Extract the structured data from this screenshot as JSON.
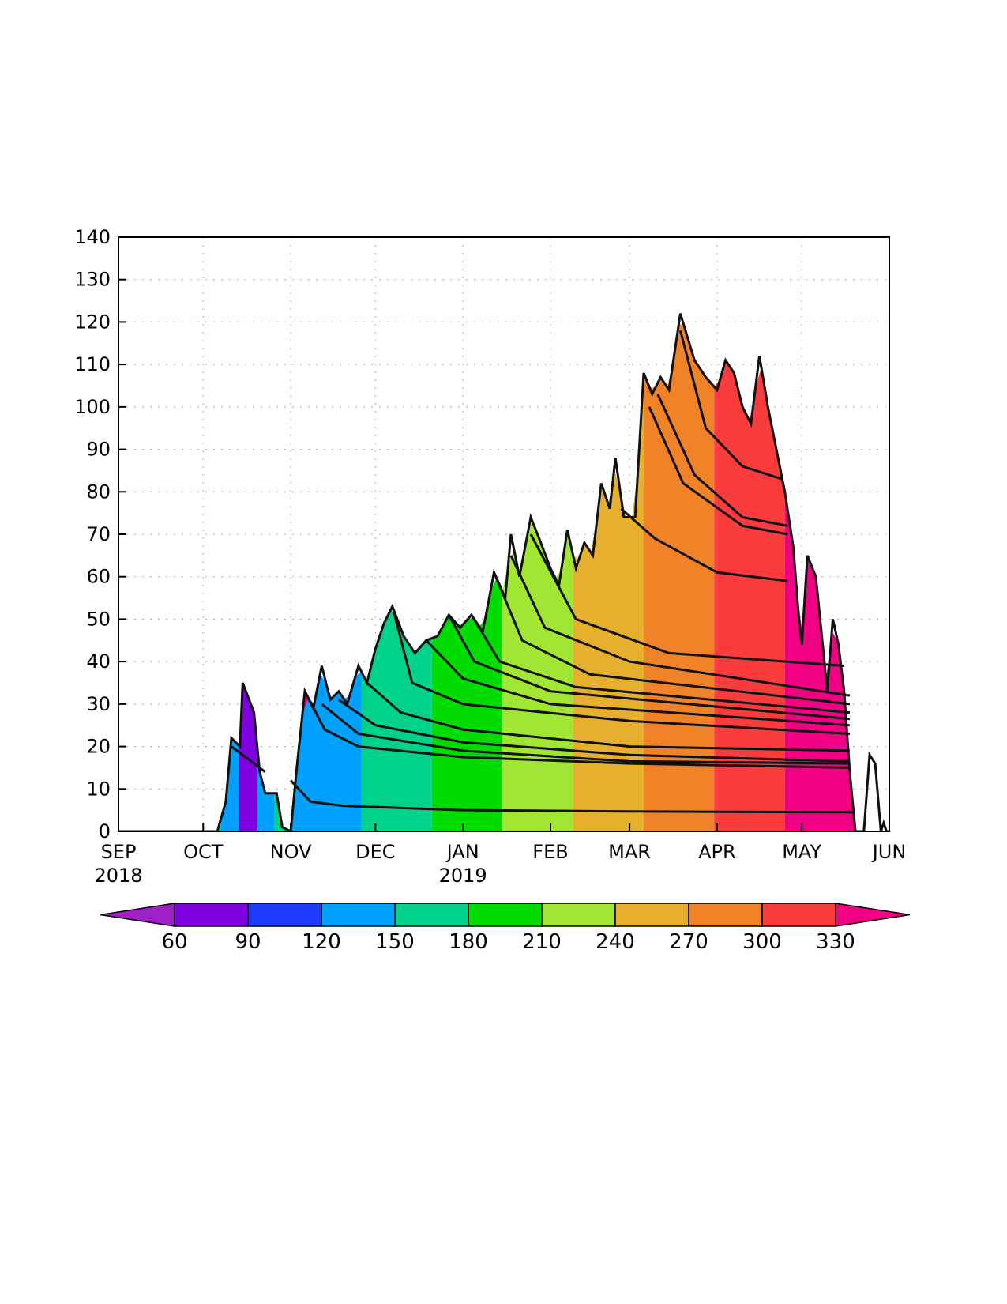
{
  "chart_data": {
    "type": "area",
    "title": "",
    "xlabel": "",
    "ylabel": "",
    "x_range": [
      "2018-09-01",
      "2019-06-01"
    ],
    "ylim": [
      0,
      140
    ],
    "grid": true,
    "y_ticks": [
      0,
      10,
      20,
      30,
      40,
      50,
      60,
      70,
      80,
      90,
      100,
      110,
      120,
      130,
      140
    ],
    "x_ticks": [
      {
        "date": "2018-09-01",
        "label": "SEP",
        "sublabel": "2018"
      },
      {
        "date": "2018-10-01",
        "label": "OCT",
        "sublabel": ""
      },
      {
        "date": "2018-11-01",
        "label": "NOV",
        "sublabel": ""
      },
      {
        "date": "2018-12-01",
        "label": "DEC",
        "sublabel": ""
      },
      {
        "date": "2019-01-01",
        "label": "JAN",
        "sublabel": "2019"
      },
      {
        "date": "2019-02-01",
        "label": "FEB",
        "sublabel": ""
      },
      {
        "date": "2019-03-01",
        "label": "MAR",
        "sublabel": ""
      },
      {
        "date": "2019-04-01",
        "label": "APR",
        "sublabel": ""
      },
      {
        "date": "2019-05-01",
        "label": "MAY",
        "sublabel": ""
      },
      {
        "date": "2019-06-01",
        "label": "JUN",
        "sublabel": ""
      }
    ],
    "total_profile": [
      [
        "2018-09-01",
        0
      ],
      [
        "2018-10-06",
        0
      ],
      [
        "2018-10-09",
        7
      ],
      [
        "2018-10-11",
        22
      ],
      [
        "2018-10-14",
        20
      ],
      [
        "2018-10-15",
        35
      ],
      [
        "2018-10-19",
        28
      ],
      [
        "2018-10-21",
        14
      ],
      [
        "2018-10-23",
        9
      ],
      [
        "2018-10-27",
        9
      ],
      [
        "2018-10-29",
        1
      ],
      [
        "2018-11-01",
        0
      ],
      [
        "2018-11-03",
        14
      ],
      [
        "2018-11-06",
        33
      ],
      [
        "2018-11-09",
        29
      ],
      [
        "2018-11-12",
        39
      ],
      [
        "2018-11-15",
        31
      ],
      [
        "2018-11-18",
        33
      ],
      [
        "2018-11-21",
        30
      ],
      [
        "2018-11-25",
        39
      ],
      [
        "2018-11-28",
        35
      ],
      [
        "2018-12-01",
        43
      ],
      [
        "2018-12-04",
        49
      ],
      [
        "2018-12-07",
        53
      ],
      [
        "2018-12-11",
        46
      ],
      [
        "2018-12-15",
        42
      ],
      [
        "2018-12-19",
        45
      ],
      [
        "2018-12-23",
        46
      ],
      [
        "2018-12-27",
        51
      ],
      [
        "2018-12-31",
        48
      ],
      [
        "2019-01-04",
        51
      ],
      [
        "2019-01-08",
        47
      ],
      [
        "2019-01-12",
        61
      ],
      [
        "2019-01-16",
        55
      ],
      [
        "2019-01-18",
        70
      ],
      [
        "2019-01-21",
        60
      ],
      [
        "2019-01-25",
        74
      ],
      [
        "2019-01-28",
        69
      ],
      [
        "2019-02-01",
        62
      ],
      [
        "2019-02-04",
        58
      ],
      [
        "2019-02-07",
        71
      ],
      [
        "2019-02-10",
        62
      ],
      [
        "2019-02-13",
        68
      ],
      [
        "2019-02-16",
        65
      ],
      [
        "2019-02-19",
        82
      ],
      [
        "2019-02-22",
        76
      ],
      [
        "2019-02-24",
        88
      ],
      [
        "2019-02-27",
        74
      ],
      [
        "2019-03-03",
        74
      ],
      [
        "2019-03-06",
        108
      ],
      [
        "2019-03-09",
        103
      ],
      [
        "2019-03-12",
        107
      ],
      [
        "2019-03-15",
        104
      ],
      [
        "2019-03-19",
        122
      ],
      [
        "2019-03-24",
        111
      ],
      [
        "2019-03-28",
        107
      ],
      [
        "2019-04-01",
        104
      ],
      [
        "2019-04-04",
        111
      ],
      [
        "2019-04-07",
        108
      ],
      [
        "2019-04-10",
        100
      ],
      [
        "2019-04-13",
        96
      ],
      [
        "2019-04-16",
        112
      ],
      [
        "2019-04-19",
        100
      ],
      [
        "2019-04-22",
        90
      ],
      [
        "2019-04-25",
        80
      ],
      [
        "2019-04-28",
        67
      ],
      [
        "2019-04-30",
        50
      ],
      [
        "2019-05-01",
        44
      ],
      [
        "2019-05-03",
        65
      ],
      [
        "2019-05-06",
        60
      ],
      [
        "2019-05-09",
        40
      ],
      [
        "2019-05-10",
        33
      ],
      [
        "2019-05-12",
        50
      ],
      [
        "2019-05-14",
        44
      ],
      [
        "2019-05-16",
        33
      ],
      [
        "2019-05-18",
        14
      ],
      [
        "2019-05-20",
        0
      ],
      [
        "2019-05-23",
        0
      ],
      [
        "2019-05-25",
        18
      ],
      [
        "2019-05-27",
        16
      ],
      [
        "2019-05-29",
        0
      ],
      [
        "2019-05-30",
        2
      ],
      [
        "2019-05-31",
        0
      ],
      [
        "2019-06-01",
        0
      ]
    ],
    "layer_lines": [
      [
        [
          "2018-10-11",
          20
        ],
        [
          "2018-10-19",
          16
        ],
        [
          "2018-10-23",
          14
        ]
      ],
      [
        [
          "2018-11-01",
          12
        ],
        [
          "2018-11-08",
          7
        ],
        [
          "2018-11-20",
          6
        ],
        [
          "2019-01-01",
          5
        ],
        [
          "2019-03-01",
          4.7
        ],
        [
          "2019-05-19",
          4.5
        ]
      ],
      [
        [
          "2018-11-06",
          33
        ],
        [
          "2018-11-13",
          24
        ],
        [
          "2018-11-25",
          20
        ],
        [
          "2019-01-01",
          17.5
        ],
        [
          "2019-03-01",
          16
        ],
        [
          "2019-05-18",
          15
        ]
      ],
      [
        [
          "2018-11-12",
          30
        ],
        [
          "2018-11-25",
          23
        ],
        [
          "2019-01-01",
          19
        ],
        [
          "2019-03-01",
          16.5
        ],
        [
          "2019-05-18",
          16
        ]
      ],
      [
        [
          "2018-11-18",
          31
        ],
        [
          "2018-12-01",
          25
        ],
        [
          "2019-01-01",
          21
        ],
        [
          "2019-03-01",
          18
        ],
        [
          "2019-05-18",
          16.5
        ]
      ],
      [
        [
          "2018-11-28",
          35
        ],
        [
          "2018-12-10",
          28
        ],
        [
          "2019-01-01",
          24
        ],
        [
          "2019-03-01",
          20
        ],
        [
          "2019-05-18",
          19
        ]
      ],
      [
        [
          "2018-12-07",
          53
        ],
        [
          "2018-12-14",
          35
        ],
        [
          "2019-01-01",
          30
        ],
        [
          "2019-03-01",
          26
        ],
        [
          "2019-05-18",
          23
        ]
      ],
      [
        [
          "2018-12-19",
          45
        ],
        [
          "2019-01-01",
          36
        ],
        [
          "2019-02-01",
          30
        ],
        [
          "2019-05-18",
          25
        ]
      ],
      [
        [
          "2018-12-27",
          51
        ],
        [
          "2019-01-05",
          40
        ],
        [
          "2019-02-01",
          33
        ],
        [
          "2019-05-18",
          26.5
        ]
      ],
      [
        [
          "2019-01-04",
          51
        ],
        [
          "2019-01-14",
          40
        ],
        [
          "2019-02-10",
          34
        ],
        [
          "2019-05-18",
          28
        ]
      ],
      [
        [
          "2019-01-12",
          61
        ],
        [
          "2019-01-22",
          45
        ],
        [
          "2019-02-15",
          37
        ],
        [
          "2019-05-18",
          30
        ]
      ],
      [
        [
          "2019-01-18",
          65
        ],
        [
          "2019-01-30",
          48
        ],
        [
          "2019-03-01",
          40
        ],
        [
          "2019-05-18",
          32
        ]
      ],
      [
        [
          "2019-01-25",
          70
        ],
        [
          "2019-02-10",
          50
        ],
        [
          "2019-03-15",
          42
        ],
        [
          "2019-05-16",
          39
        ]
      ],
      [
        [
          "2019-02-26",
          76
        ],
        [
          "2019-03-10",
          69
        ],
        [
          "2019-04-01",
          61
        ],
        [
          "2019-04-26",
          59
        ]
      ],
      [
        [
          "2019-03-08",
          100
        ],
        [
          "2019-03-20",
          82
        ],
        [
          "2019-04-10",
          72
        ],
        [
          "2019-04-26",
          70
        ]
      ],
      [
        [
          "2019-03-11",
          103
        ],
        [
          "2019-03-24",
          84
        ],
        [
          "2019-04-10",
          74
        ],
        [
          "2019-04-26",
          72
        ]
      ],
      [
        [
          "2019-03-19",
          118
        ],
        [
          "2019-03-28",
          95
        ],
        [
          "2019-04-10",
          86
        ],
        [
          "2019-04-24",
          83
        ]
      ]
    ],
    "colorbar": {
      "labels": [
        60,
        90,
        120,
        150,
        180,
        210,
        240,
        270,
        300,
        330
      ],
      "colors": [
        "#a020c8",
        "#8000e0",
        "#1e3cff",
        "#00a0ff",
        "#00d28c",
        "#00dc00",
        "#a0e632",
        "#e6af2d",
        "#f08228",
        "#fa3c3c",
        "#f00082"
      ],
      "extend": "both"
    },
    "layer_colors_by_month": [
      {
        "from": "2018-10-01",
        "to": "2018-11-08",
        "colors": [
          "#00d28c",
          "#00a0ff",
          "#8000e0",
          "#00a0ff",
          "#00d28c",
          "#f00082"
        ]
      },
      {
        "from": "2018-11-01",
        "to": "2019-05-20",
        "colors": [
          "#00a0ff",
          "#00d28c",
          "#00dc00",
          "#a0e632",
          "#e6af2d",
          "#f08228",
          "#fa3c3c",
          "#f00082"
        ]
      }
    ]
  }
}
